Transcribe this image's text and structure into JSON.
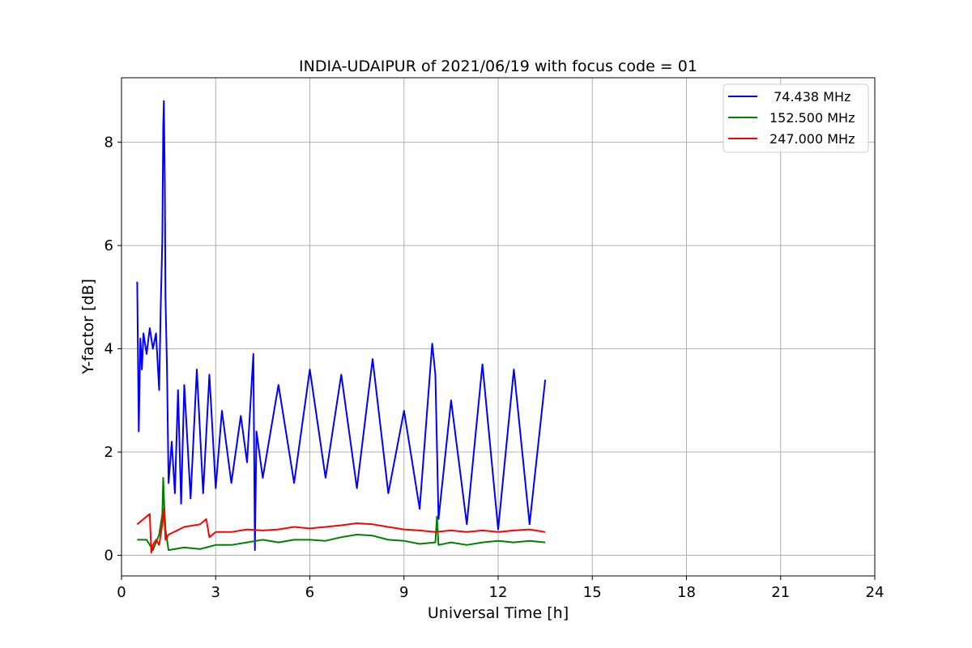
{
  "chart_data": {
    "type": "line",
    "title": "INDIA-UDAIPUR of 2021/06/19 with focus code = 01",
    "xlabel": "Universal Time [h]",
    "ylabel": "Y-factor [dB]",
    "xlim": [
      0,
      24
    ],
    "ylim": [
      -0.4,
      9.25
    ],
    "xticks": [
      0,
      3,
      6,
      9,
      12,
      15,
      18,
      21,
      24
    ],
    "xtick_labels": [
      "0",
      "3",
      "6",
      "9",
      "12",
      "15",
      "18",
      "21",
      "24"
    ],
    "yticks": [
      0,
      2,
      4,
      6,
      8
    ],
    "ytick_labels": [
      "0",
      "2",
      "4",
      "6",
      "8"
    ],
    "grid": true,
    "legend_position": "top-right",
    "series": [
      {
        "name": " 74.438 MHz",
        "color": "#0000ff",
        "x": [
          0.5,
          0.55,
          0.6,
          0.65,
          0.7,
          0.8,
          0.9,
          1.0,
          1.1,
          1.2,
          1.25,
          1.3,
          1.33,
          1.35,
          1.38,
          1.4,
          1.45,
          1.5,
          1.6,
          1.7,
          1.8,
          1.9,
          2.0,
          2.2,
          2.4,
          2.6,
          2.8,
          3.0,
          3.2,
          3.5,
          3.8,
          4.0,
          4.2,
          4.25,
          4.3,
          4.5,
          5.0,
          5.5,
          6.0,
          6.5,
          7.0,
          7.5,
          8.0,
          8.5,
          9.0,
          9.5,
          9.9,
          10.0,
          10.1,
          10.5,
          11.0,
          11.5,
          12.0,
          12.5,
          13.0,
          13.5
        ],
        "y": [
          5.3,
          2.4,
          4.2,
          3.6,
          4.3,
          3.9,
          4.4,
          4.0,
          4.3,
          3.2,
          4.8,
          6.1,
          8.3,
          8.8,
          7.2,
          5.0,
          3.6,
          1.4,
          2.2,
          1.2,
          3.2,
          1.0,
          3.3,
          1.1,
          3.6,
          1.2,
          3.5,
          1.3,
          2.8,
          1.4,
          2.7,
          1.8,
          3.9,
          0.1,
          2.4,
          1.5,
          3.3,
          1.4,
          3.6,
          1.5,
          3.5,
          1.3,
          3.8,
          1.2,
          2.8,
          0.9,
          4.1,
          3.5,
          0.7,
          3.0,
          0.6,
          3.7,
          0.5,
          3.6,
          0.6,
          3.4
        ]
      },
      {
        "name": "152.500 MHz",
        "color": "#008000",
        "x": [
          0.5,
          0.8,
          1.0,
          1.1,
          1.2,
          1.3,
          1.33,
          1.36,
          1.4,
          1.5,
          2.0,
          2.5,
          3.0,
          3.5,
          4.0,
          4.5,
          5.0,
          5.5,
          6.0,
          6.5,
          7.0,
          7.5,
          8.0,
          8.5,
          9.0,
          9.5,
          10.0,
          10.05,
          10.1,
          10.5,
          11.0,
          11.5,
          12.0,
          12.5,
          13.0,
          13.5
        ],
        "y": [
          0.3,
          0.3,
          0.1,
          0.25,
          0.4,
          0.8,
          1.5,
          1.0,
          0.5,
          0.1,
          0.15,
          0.12,
          0.2,
          0.2,
          0.25,
          0.3,
          0.25,
          0.3,
          0.3,
          0.28,
          0.35,
          0.4,
          0.38,
          0.3,
          0.28,
          0.22,
          0.25,
          0.75,
          0.2,
          0.25,
          0.2,
          0.25,
          0.28,
          0.25,
          0.28,
          0.25
        ]
      },
      {
        "name": "247.000 MHz",
        "color": "#ff0000",
        "x": [
          0.5,
          0.7,
          0.9,
          0.95,
          1.0,
          1.1,
          1.2,
          1.3,
          1.35,
          1.4,
          1.5,
          2.0,
          2.5,
          2.7,
          2.8,
          3.0,
          3.5,
          4.0,
          4.5,
          5.0,
          5.5,
          6.0,
          6.5,
          7.0,
          7.5,
          8.0,
          8.5,
          9.0,
          9.5,
          10.0,
          10.5,
          11.0,
          11.5,
          12.0,
          12.5,
          13.0,
          13.5
        ],
        "y": [
          0.6,
          0.7,
          0.8,
          0.05,
          0.2,
          0.3,
          0.2,
          0.6,
          0.9,
          0.3,
          0.4,
          0.55,
          0.6,
          0.7,
          0.35,
          0.45,
          0.45,
          0.5,
          0.48,
          0.5,
          0.55,
          0.52,
          0.55,
          0.58,
          0.62,
          0.6,
          0.55,
          0.5,
          0.48,
          0.45,
          0.48,
          0.45,
          0.48,
          0.45,
          0.48,
          0.5,
          0.45
        ]
      }
    ]
  }
}
